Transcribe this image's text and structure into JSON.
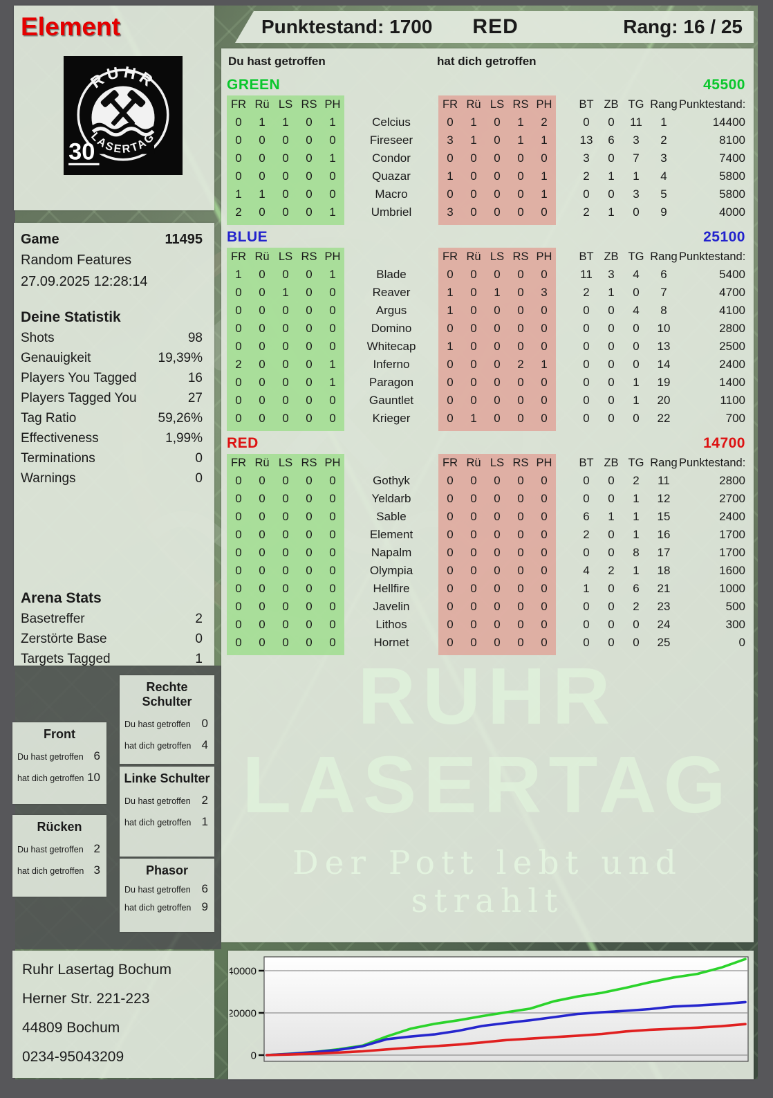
{
  "player": {
    "title": "Element"
  },
  "logo": {
    "arc_top": "RUHR",
    "arc_bottom": "LASERTAG",
    "number": "30"
  },
  "header": {
    "punktestand": "Punktestand: 1700",
    "team": "RED",
    "rang": "Rang: 16 / 25"
  },
  "game_info": {
    "label": "Game",
    "number": "11495",
    "mode": "Random Features",
    "datetime": "27.09.2025 12:28:14"
  },
  "stats": {
    "title": "Deine Statistik",
    "rows": [
      {
        "label": "Shots",
        "value": "98"
      },
      {
        "label": "Genauigkeit",
        "value": "19,39%"
      },
      {
        "label": "Players You Tagged",
        "value": "16"
      },
      {
        "label": "Players Tagged You",
        "value": "27"
      },
      {
        "label": "Tag Ratio",
        "value": "59,26%"
      },
      {
        "label": "Effectiveness",
        "value": "1,99%"
      },
      {
        "label": "Terminations",
        "value": "0"
      },
      {
        "label": "Warnings",
        "value": "0"
      }
    ]
  },
  "arena_stats": {
    "title": "Arena Stats",
    "rows": [
      {
        "label": "Basetreffer",
        "value": "2"
      },
      {
        "label": "Zerstörte Base",
        "value": "0"
      },
      {
        "label": "Targets Tagged",
        "value": "1"
      }
    ]
  },
  "hit_zones": {
    "du_label": "Du hast getroffen",
    "dich_label": "hat dich getroffen",
    "boxes": [
      {
        "title": "Rechte Schulter",
        "du": "0",
        "dich": "4"
      },
      {
        "title": "Front",
        "du": "6",
        "dich": "10"
      },
      {
        "title": "Linke Schulter",
        "du": "2",
        "dich": "1"
      },
      {
        "title": "Rücken",
        "du": "2",
        "dich": "3"
      },
      {
        "title": "Phasor",
        "du": "6",
        "dich": "9"
      }
    ]
  },
  "address": {
    "lines": [
      "Ruhr Lasertag Bochum",
      "Herner Str. 221-223",
      "44809 Bochum",
      "0234-95043209"
    ]
  },
  "watermark": {
    "line1": "RUHR",
    "line2": "LASERTAG",
    "line3": "Der Pott lebt und strahlt"
  },
  "scoreboard": {
    "du_header": "Du hast getroffen",
    "dich_header": "hat dich getroffen",
    "hit_cols": [
      "FR",
      "Rü",
      "LS",
      "RS",
      "PH"
    ],
    "stat_cols": [
      "BT",
      "ZB",
      "TG",
      "Rang"
    ],
    "punkte_col": "Punktestand:",
    "teams": [
      {
        "name": "GREEN",
        "color": "#09c72c",
        "total": "45500",
        "rows": [
          {
            "you": [
              0,
              1,
              1,
              0,
              1
            ],
            "name": "Celcius",
            "them": [
              0,
              1,
              0,
              1,
              2
            ],
            "stats": [
              0,
              0,
              11,
              1
            ],
            "punkte": "14400"
          },
          {
            "you": [
              0,
              0,
              0,
              0,
              0
            ],
            "name": "Fireseer",
            "them": [
              3,
              1,
              0,
              1,
              1
            ],
            "stats": [
              13,
              6,
              3,
              2
            ],
            "punkte": "8100"
          },
          {
            "you": [
              0,
              0,
              0,
              0,
              1
            ],
            "name": "Condor",
            "them": [
              0,
              0,
              0,
              0,
              0
            ],
            "stats": [
              3,
              0,
              7,
              3
            ],
            "punkte": "7400"
          },
          {
            "you": [
              0,
              0,
              0,
              0,
              0
            ],
            "name": "Quazar",
            "them": [
              1,
              0,
              0,
              0,
              1
            ],
            "stats": [
              2,
              1,
              1,
              4
            ],
            "punkte": "5800"
          },
          {
            "you": [
              1,
              1,
              0,
              0,
              0
            ],
            "name": "Macro",
            "them": [
              0,
              0,
              0,
              0,
              1
            ],
            "stats": [
              0,
              0,
              3,
              5
            ],
            "punkte": "5800"
          },
          {
            "you": [
              2,
              0,
              0,
              0,
              1
            ],
            "name": "Umbriel",
            "them": [
              3,
              0,
              0,
              0,
              0
            ],
            "stats": [
              2,
              1,
              0,
              9
            ],
            "punkte": "4000"
          }
        ]
      },
      {
        "name": "BLUE",
        "color": "#2222cd",
        "total": "25100",
        "rows": [
          {
            "you": [
              1,
              0,
              0,
              0,
              1
            ],
            "name": "Blade",
            "them": [
              0,
              0,
              0,
              0,
              0
            ],
            "stats": [
              11,
              3,
              4,
              6
            ],
            "punkte": "5400"
          },
          {
            "you": [
              0,
              0,
              1,
              0,
              0
            ],
            "name": "Reaver",
            "them": [
              1,
              0,
              1,
              0,
              3
            ],
            "stats": [
              2,
              1,
              0,
              7
            ],
            "punkte": "4700"
          },
          {
            "you": [
              0,
              0,
              0,
              0,
              0
            ],
            "name": "Argus",
            "them": [
              1,
              0,
              0,
              0,
              0
            ],
            "stats": [
              0,
              0,
              4,
              8
            ],
            "punkte": "4100"
          },
          {
            "you": [
              0,
              0,
              0,
              0,
              0
            ],
            "name": "Domino",
            "them": [
              0,
              0,
              0,
              0,
              0
            ],
            "stats": [
              0,
              0,
              0,
              10
            ],
            "punkte": "2800"
          },
          {
            "you": [
              0,
              0,
              0,
              0,
              0
            ],
            "name": "Whitecap",
            "them": [
              1,
              0,
              0,
              0,
              0
            ],
            "stats": [
              0,
              0,
              0,
              13
            ],
            "punkte": "2500"
          },
          {
            "you": [
              2,
              0,
              0,
              0,
              1
            ],
            "name": "Inferno",
            "them": [
              0,
              0,
              0,
              2,
              1
            ],
            "stats": [
              0,
              0,
              0,
              14
            ],
            "punkte": "2400"
          },
          {
            "you": [
              0,
              0,
              0,
              0,
              1
            ],
            "name": "Paragon",
            "them": [
              0,
              0,
              0,
              0,
              0
            ],
            "stats": [
              0,
              0,
              1,
              19
            ],
            "punkte": "1400"
          },
          {
            "you": [
              0,
              0,
              0,
              0,
              0
            ],
            "name": "Gauntlet",
            "them": [
              0,
              0,
              0,
              0,
              0
            ],
            "stats": [
              0,
              0,
              1,
              20
            ],
            "punkte": "1100"
          },
          {
            "you": [
              0,
              0,
              0,
              0,
              0
            ],
            "name": "Krieger",
            "them": [
              0,
              1,
              0,
              0,
              0
            ],
            "stats": [
              0,
              0,
              0,
              22
            ],
            "punkte": "700"
          }
        ]
      },
      {
        "name": "RED",
        "color": "#dd1111",
        "total": "14700",
        "rows": [
          {
            "you": [
              0,
              0,
              0,
              0,
              0
            ],
            "name": "Gothyk",
            "them": [
              0,
              0,
              0,
              0,
              0
            ],
            "stats": [
              0,
              0,
              2,
              11
            ],
            "punkte": "2800"
          },
          {
            "you": [
              0,
              0,
              0,
              0,
              0
            ],
            "name": "Yeldarb",
            "them": [
              0,
              0,
              0,
              0,
              0
            ],
            "stats": [
              0,
              0,
              1,
              12
            ],
            "punkte": "2700"
          },
          {
            "you": [
              0,
              0,
              0,
              0,
              0
            ],
            "name": "Sable",
            "them": [
              0,
              0,
              0,
              0,
              0
            ],
            "stats": [
              6,
              1,
              1,
              15
            ],
            "punkte": "2400"
          },
          {
            "you": [
              0,
              0,
              0,
              0,
              0
            ],
            "name": "Element",
            "them": [
              0,
              0,
              0,
              0,
              0
            ],
            "stats": [
              2,
              0,
              1,
              16
            ],
            "punkte": "1700"
          },
          {
            "you": [
              0,
              0,
              0,
              0,
              0
            ],
            "name": "Napalm",
            "them": [
              0,
              0,
              0,
              0,
              0
            ],
            "stats": [
              0,
              0,
              8,
              17
            ],
            "punkte": "1700"
          },
          {
            "you": [
              0,
              0,
              0,
              0,
              0
            ],
            "name": "Olympia",
            "them": [
              0,
              0,
              0,
              0,
              0
            ],
            "stats": [
              4,
              2,
              1,
              18
            ],
            "punkte": "1600"
          },
          {
            "you": [
              0,
              0,
              0,
              0,
              0
            ],
            "name": "Hellfire",
            "them": [
              0,
              0,
              0,
              0,
              0
            ],
            "stats": [
              1,
              0,
              6,
              21
            ],
            "punkte": "1000"
          },
          {
            "you": [
              0,
              0,
              0,
              0,
              0
            ],
            "name": "Javelin",
            "them": [
              0,
              0,
              0,
              0,
              0
            ],
            "stats": [
              0,
              0,
              2,
              23
            ],
            "punkte": "500"
          },
          {
            "you": [
              0,
              0,
              0,
              0,
              0
            ],
            "name": "Lithos",
            "them": [
              0,
              0,
              0,
              0,
              0
            ],
            "stats": [
              0,
              0,
              0,
              24
            ],
            "punkte": "300"
          },
          {
            "you": [
              0,
              0,
              0,
              0,
              0
            ],
            "name": "Hornet",
            "them": [
              0,
              0,
              0,
              0,
              0
            ],
            "stats": [
              0,
              0,
              0,
              25
            ],
            "punkte": "0"
          }
        ]
      }
    ]
  },
  "footer": {
    "venue": "Ruhr Lasertag Bochum"
  },
  "chart_data": {
    "type": "line",
    "title": "",
    "xlabel": "",
    "ylabel": "",
    "yticks": [
      0,
      20000,
      40000
    ],
    "ylim": [
      0,
      47000
    ],
    "grid": true,
    "legend": "none",
    "x": [
      0,
      1,
      2,
      3,
      4,
      5,
      6,
      7,
      8,
      9,
      10,
      11,
      12,
      13,
      14,
      15,
      16,
      17,
      18,
      19,
      20
    ],
    "series": [
      {
        "name": "GREEN",
        "color": "#2bd32b",
        "values": [
          0,
          700,
          1500,
          2800,
          4500,
          8800,
          12500,
          14800,
          16500,
          18500,
          20300,
          22000,
          25500,
          27800,
          29500,
          31900,
          34500,
          36800,
          38500,
          41500,
          45500
        ]
      },
      {
        "name": "BLUE",
        "color": "#2626cd",
        "values": [
          0,
          600,
          1400,
          2500,
          4200,
          7500,
          8800,
          9800,
          11500,
          13800,
          15200,
          16500,
          18000,
          19500,
          20300,
          21000,
          21800,
          23000,
          23500,
          24200,
          25100
        ]
      },
      {
        "name": "RED",
        "color": "#e02020",
        "values": [
          0,
          300,
          700,
          1200,
          1800,
          2700,
          3500,
          4200,
          5000,
          6000,
          7100,
          7800,
          8500,
          9200,
          10000,
          11200,
          12000,
          12500,
          13000,
          13700,
          14700
        ]
      }
    ]
  }
}
